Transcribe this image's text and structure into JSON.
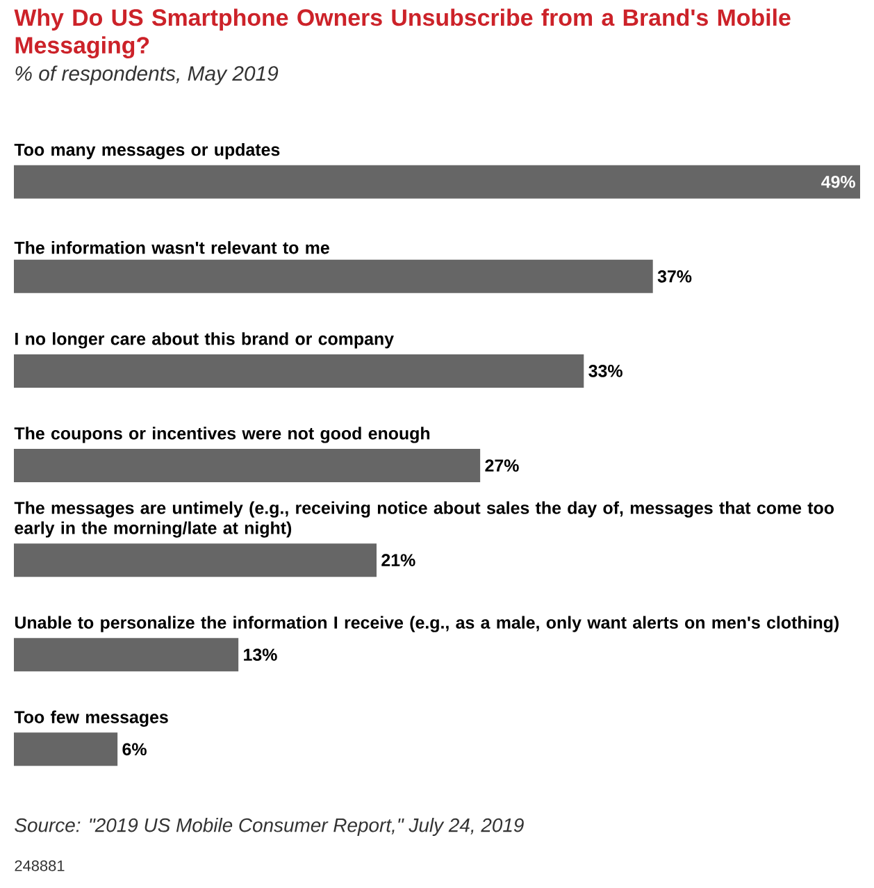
{
  "chart_data": {
    "type": "bar",
    "orientation": "horizontal",
    "title": "Why Do US Smartphone Owners Unsubscribe from a Brand's Mobile Messaging?",
    "subtitle": "% of respondents, May 2019",
    "categories": [
      "Too many messages or updates",
      "The information wasn't relevant to me",
      "I no longer care about this brand or company",
      "The coupons or incentives were not good enough",
      "The messages are untimely (e.g., receiving notice about sales the day of, messages that come too early in the morning/late at night)",
      "Unable to personalize the information I receive (e.g., as a male, only want alerts on men's clothing)",
      "Too few messages"
    ],
    "values": [
      49,
      37,
      33,
      27,
      21,
      13,
      6
    ],
    "value_labels": [
      "49%",
      "37%",
      "33%",
      "27%",
      "21%",
      "13%",
      "6%"
    ],
    "color": "#666666",
    "annotations": [
      "Source: \"2019 US Mobile Consumer Report,\" July 24, 2019",
      "248881"
    ]
  }
}
